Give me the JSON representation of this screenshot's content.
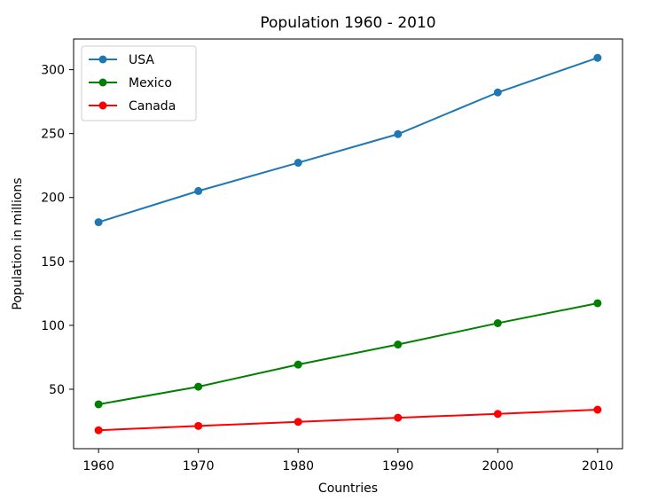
{
  "chart_data": {
    "type": "line",
    "title": "Population 1960 - 2010",
    "xlabel": "Countries",
    "ylabel": "Population in millions",
    "x": [
      1960,
      1970,
      1980,
      1990,
      2000,
      2010
    ],
    "xticks": [
      "1960",
      "1970",
      "1980",
      "1990",
      "2000",
      "2010"
    ],
    "yticks": [
      50,
      100,
      150,
      200,
      250,
      300
    ],
    "ytick_labels": [
      "50",
      "100",
      "150",
      "200",
      "250",
      "300"
    ],
    "xlim": [
      1957.5,
      2012.5
    ],
    "ylim": [
      3.5,
      324
    ],
    "grid": false,
    "legend_position": "top-left",
    "series": [
      {
        "name": "USA",
        "color": "#1f77b4",
        "marker": "circle",
        "values": [
          180.7,
          205.1,
          227.2,
          249.6,
          282.2,
          309.3
        ]
      },
      {
        "name": "Mexico",
        "color": "#008000",
        "marker": "circle",
        "values": [
          38.2,
          52.0,
          69.3,
          85.0,
          101.7,
          117.3
        ]
      },
      {
        "name": "Canada",
        "color": "#ff0000",
        "marker": "circle",
        "values": [
          17.9,
          21.3,
          24.5,
          27.7,
          30.7,
          34.0
        ]
      }
    ]
  }
}
